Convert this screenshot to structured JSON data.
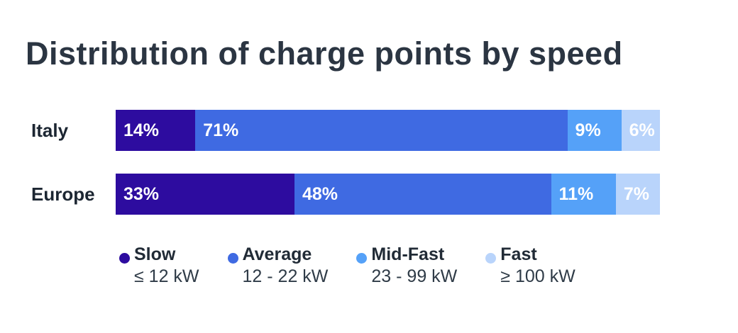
{
  "chart_data": {
    "type": "bar",
    "stacked": true,
    "orientation": "horizontal",
    "title": "Distribution of charge points by speed",
    "categories": [
      "Italy",
      "Europe"
    ],
    "series": [
      {
        "name": "Slow",
        "range": "≤ 12 kW",
        "color": "#2d0c9f",
        "values": [
          14,
          33
        ]
      },
      {
        "name": "Average",
        "range": "12 - 22 kW",
        "color": "#3f6ae2",
        "values": [
          71,
          48
        ]
      },
      {
        "name": "Mid-Fast",
        "range": "23 - 99 kW",
        "color": "#55a1f8",
        "values": [
          9,
          11
        ]
      },
      {
        "name": "Fast",
        "range": "≥ 100 kW",
        "color": "#b9d4fb",
        "values": [
          6,
          7
        ]
      }
    ],
    "value_suffix": "%",
    "legend_position": "bottom",
    "grid": false,
    "background": "#ffffff",
    "title_color": "#2b3542"
  }
}
